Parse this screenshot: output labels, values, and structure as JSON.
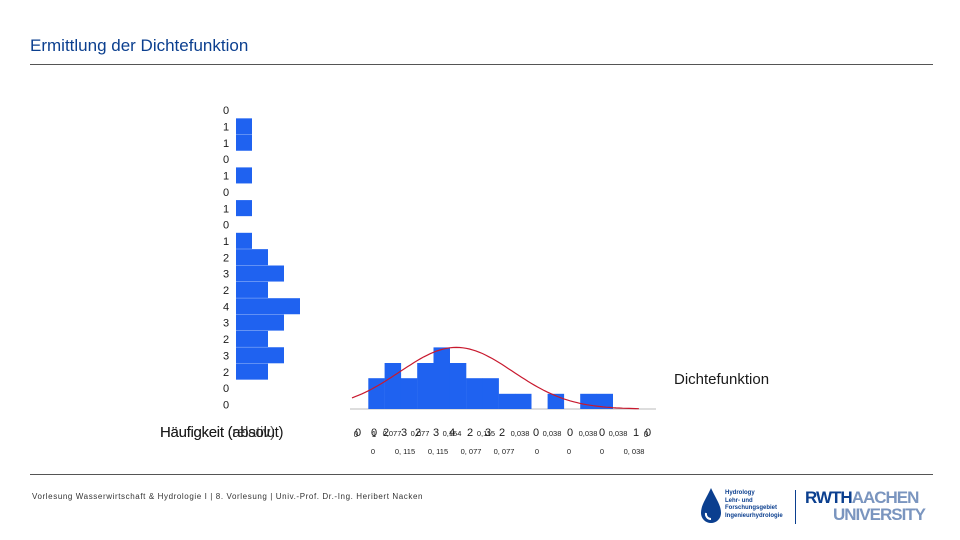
{
  "slide": {
    "title": "Ermittlung der Dichtefunktion",
    "footer": "Vorlesung Wasserwirtschaft & Hydrologie I | 8. Vorlesung | Univ.-Prof. Dr.-Ing. Heribert Nacken"
  },
  "colors": {
    "bar": "#1f62f0",
    "curve": "#c8192e",
    "axis": "#bbbbbb",
    "title": "#0b3f8f"
  },
  "logos": {
    "hydro_lines": [
      "Hydrology",
      "Lehr- und",
      "Forschungsgebiet",
      "Ingenieurhydrologie"
    ],
    "rwth_word": "RWTH",
    "rwth_city": "AACHEN",
    "rwth_university": "UNIVERSITY"
  },
  "chart_data": [
    {
      "type": "bar",
      "orientation": "horizontal",
      "title": "Häufigkeit (absolut)",
      "overlapping_label": "Häufigkeit (relativ)",
      "values": [
        0,
        1,
        1,
        0,
        1,
        0,
        1,
        0,
        1,
        2,
        3,
        2,
        4,
        3,
        2,
        3,
        2,
        0,
        0
      ],
      "xlim": [
        0,
        4
      ]
    },
    {
      "type": "bar",
      "title": "Dichtefunktion",
      "series_name": "Häufigkeit (relativ)",
      "values": [
        0,
        0.077,
        0.115,
        0.077,
        0.115,
        0.154,
        0.115,
        0.077,
        0.077,
        0.038,
        0.038,
        0,
        0.038,
        0,
        0.038,
        0.038,
        0
      ],
      "curve": "normal",
      "ylim": [
        0,
        0.17
      ],
      "absolute_row": {
        "values": [
          "0",
          "0",
          "2",
          "3",
          "2",
          "3",
          "4",
          "2",
          "3",
          "2",
          "0",
          "0",
          "0",
          "1",
          "0"
        ],
        "marks": [
          "0",
          "1",
          "0"
        ]
      },
      "relative_row": {
        "values": [
          "0,077",
          "0,077",
          "0,154",
          "0,115",
          "0,038",
          "0,038",
          "0,038",
          "0,038"
        ]
      },
      "bottom_row": {
        "values": [
          "0",
          "0, 115",
          "0, 115",
          "0, 077",
          "0, 077",
          "0",
          "0",
          "0",
          "0, 038"
        ]
      }
    }
  ]
}
